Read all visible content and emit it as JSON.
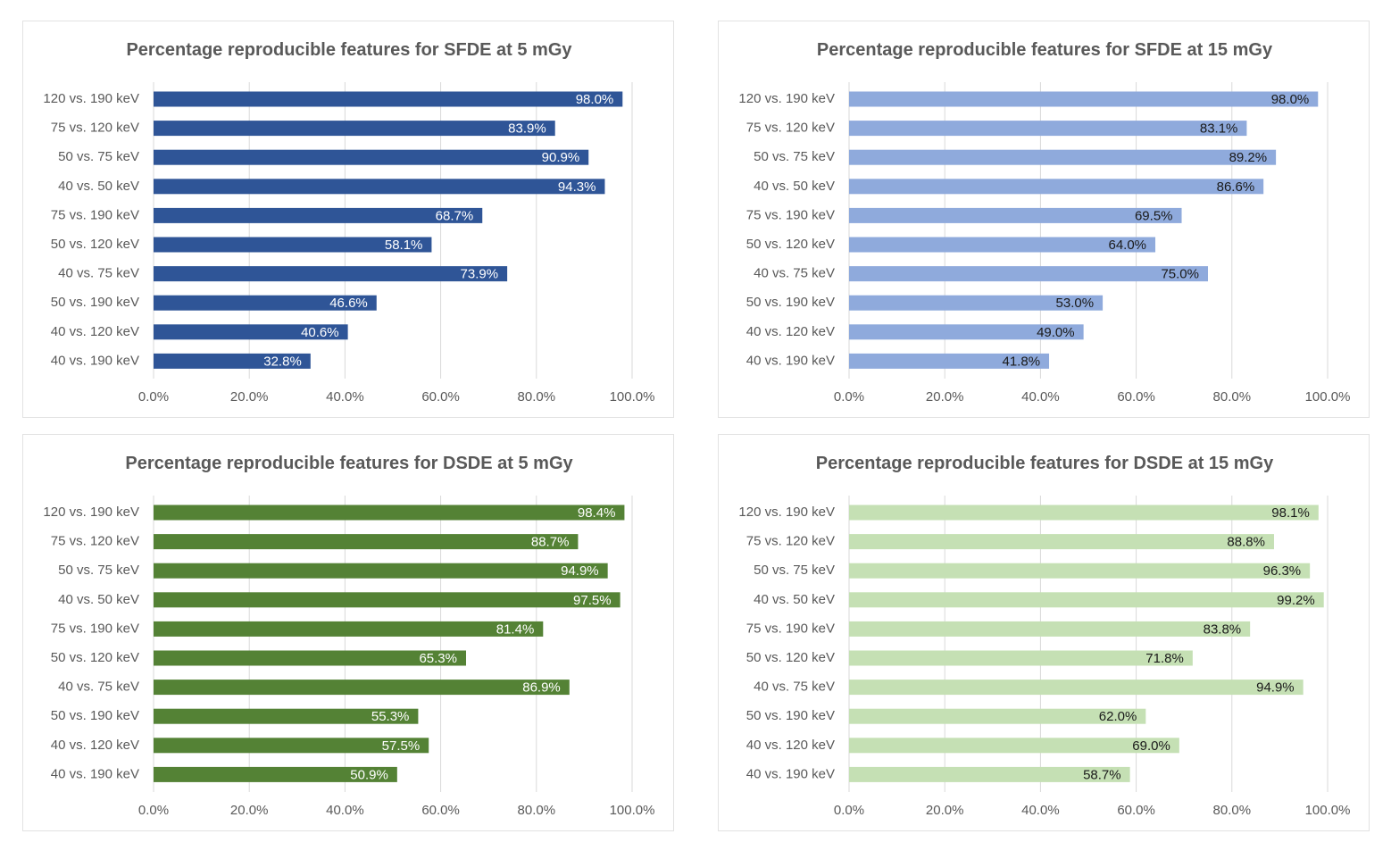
{
  "charts": [
    {
      "title": "Percentage reproducible features for SFDE at 5 mGy",
      "bar_color": "#2F5597",
      "label_color": "#ffffff",
      "categories": [
        "120 vs. 190 keV",
        "75 vs. 120 keV",
        "50 vs. 75 keV",
        "40 vs. 50 keV",
        "75 vs. 190 keV",
        "50 vs. 120 keV",
        "40 vs. 75 keV",
        "50 vs. 190 keV",
        "40 vs. 120 keV",
        "40 vs. 190 keV"
      ],
      "values": [
        98.0,
        83.9,
        90.9,
        94.3,
        68.7,
        58.1,
        73.9,
        46.6,
        40.6,
        32.8
      ],
      "data_labels": [
        "98.0%",
        "83.9%",
        "90.9%",
        "94.3%",
        "68.7%",
        "58.1%",
        "73.9%",
        "46.6%",
        "40.6%",
        "32.8%"
      ],
      "x_ticks": [
        "0.0%",
        "20.0%",
        "40.0%",
        "60.0%",
        "80.0%",
        "100.0%"
      ]
    },
    {
      "title": "Percentage reproducible features for SFDE at 15 mGy",
      "bar_color": "#8FAADC",
      "label_color": "#1a1a1a",
      "categories": [
        "120 vs. 190 keV",
        "75 vs. 120 keV",
        "50 vs. 75 keV",
        "40 vs. 50 keV",
        "75 vs. 190 keV",
        "50 vs. 120 keV",
        "40 vs. 75 keV",
        "50 vs. 190 keV",
        "40 vs. 120 keV",
        "40 vs. 190 keV"
      ],
      "values": [
        98.0,
        83.1,
        89.2,
        86.6,
        69.5,
        64.0,
        75.0,
        53.0,
        49.0,
        41.8
      ],
      "data_labels": [
        "98.0%",
        "83.1%",
        "89.2%",
        "86.6%",
        "69.5%",
        "64.0%",
        "75.0%",
        "53.0%",
        "49.0%",
        "41.8%"
      ],
      "x_ticks": [
        "0.0%",
        "20.0%",
        "40.0%",
        "60.0%",
        "80.0%",
        "100.0%"
      ]
    },
    {
      "title": "Percentage reproducible features for DSDE at 5 mGy",
      "bar_color": "#548235",
      "label_color": "#ffffff",
      "categories": [
        "120 vs. 190 keV",
        "75 vs. 120 keV",
        "50 vs. 75 keV",
        "40 vs. 50 keV",
        "75 vs. 190 keV",
        "50 vs. 120 keV",
        "40 vs. 75 keV",
        "50 vs. 190 keV",
        "40 vs. 120 keV",
        "40 vs. 190 keV"
      ],
      "values": [
        98.4,
        88.7,
        94.9,
        97.5,
        81.4,
        65.3,
        86.9,
        55.3,
        57.5,
        50.9
      ],
      "data_labels": [
        "98.4%",
        "88.7%",
        "94.9%",
        "97.5%",
        "81.4%",
        "65.3%",
        "86.9%",
        "55.3%",
        "57.5%",
        "50.9%"
      ],
      "x_ticks": [
        "0.0%",
        "20.0%",
        "40.0%",
        "60.0%",
        "80.0%",
        "100.0%"
      ]
    },
    {
      "title": "Percentage reproducible features for DSDE at 15 mGy",
      "bar_color": "#C5E0B4",
      "label_color": "#1a1a1a",
      "categories": [
        "120 vs. 190 keV",
        "75 vs. 120 keV",
        "50 vs. 75 keV",
        "40 vs. 50 keV",
        "75 vs. 190 keV",
        "50 vs. 120 keV",
        "40 vs. 75 keV",
        "50 vs. 190 keV",
        "40 vs. 120 keV",
        "40 vs. 190 keV"
      ],
      "values": [
        98.1,
        88.8,
        96.3,
        99.2,
        83.8,
        71.8,
        94.9,
        62.0,
        69.0,
        58.7
      ],
      "data_labels": [
        "98.1%",
        "88.8%",
        "96.3%",
        "99.2%",
        "83.8%",
        "71.8%",
        "94.9%",
        "62.0%",
        "69.0%",
        "58.7%"
      ],
      "x_ticks": [
        "0.0%",
        "20.0%",
        "40.0%",
        "60.0%",
        "80.0%",
        "100.0%"
      ]
    }
  ],
  "chart_data": [
    {
      "type": "bar",
      "title": "Percentage reproducible features for SFDE at 5 mGy",
      "orientation": "horizontal",
      "categories": [
        "120 vs. 190 keV",
        "75 vs. 120 keV",
        "50 vs. 75 keV",
        "40 vs. 50 keV",
        "75 vs. 190 keV",
        "50 vs. 120 keV",
        "40 vs. 75 keV",
        "50 vs. 190 keV",
        "40 vs. 120 keV",
        "40 vs. 190 keV"
      ],
      "values": [
        98.0,
        83.9,
        90.9,
        94.3,
        68.7,
        58.1,
        73.9,
        46.6,
        40.6,
        32.8
      ],
      "xlim": [
        0,
        100
      ],
      "grid": true,
      "legend": "none"
    },
    {
      "type": "bar",
      "title": "Percentage reproducible features for SFDE at 15 mGy",
      "orientation": "horizontal",
      "categories": [
        "120 vs. 190 keV",
        "75 vs. 120 keV",
        "50 vs. 75 keV",
        "40 vs. 50 keV",
        "75 vs. 190 keV",
        "50 vs. 120 keV",
        "40 vs. 75 keV",
        "50 vs. 190 keV",
        "40 vs. 120 keV",
        "40 vs. 190 keV"
      ],
      "values": [
        98.0,
        83.1,
        89.2,
        86.6,
        69.5,
        64.0,
        75.0,
        53.0,
        49.0,
        41.8
      ],
      "xlim": [
        0,
        100
      ],
      "grid": true,
      "legend": "none"
    },
    {
      "type": "bar",
      "title": "Percentage reproducible features for DSDE at 5 mGy",
      "orientation": "horizontal",
      "categories": [
        "120 vs. 190 keV",
        "75 vs. 120 keV",
        "50 vs. 75 keV",
        "40 vs. 50 keV",
        "75 vs. 190 keV",
        "50 vs. 120 keV",
        "40 vs. 75 keV",
        "50 vs. 190 keV",
        "40 vs. 120 keV",
        "40 vs. 190 keV"
      ],
      "values": [
        98.4,
        88.7,
        94.9,
        97.5,
        81.4,
        65.3,
        86.9,
        55.3,
        57.5,
        50.9
      ],
      "xlim": [
        0,
        100
      ],
      "grid": true,
      "legend": "none"
    },
    {
      "type": "bar",
      "title": "Percentage reproducible features for DSDE at 15 mGy",
      "orientation": "horizontal",
      "categories": [
        "120 vs. 190 keV",
        "75 vs. 120 keV",
        "50 vs. 75 keV",
        "40 vs. 50 keV",
        "75 vs. 190 keV",
        "50 vs. 120 keV",
        "40 vs. 75 keV",
        "50 vs. 190 keV",
        "40 vs. 120 keV",
        "40 vs. 190 keV"
      ],
      "values": [
        98.1,
        88.8,
        96.3,
        99.2,
        83.8,
        71.8,
        94.9,
        62.0,
        69.0,
        58.7
      ],
      "xlim": [
        0,
        100
      ],
      "grid": true,
      "legend": "none"
    }
  ]
}
